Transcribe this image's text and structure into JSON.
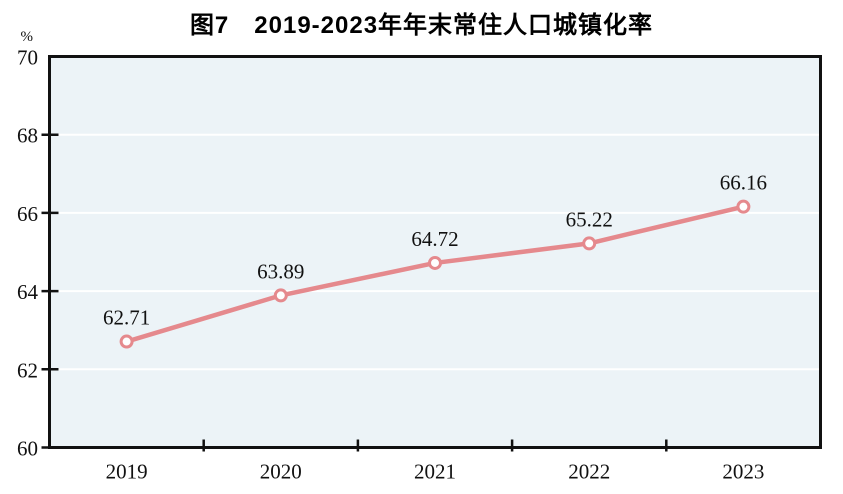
{
  "figure": {
    "title": "图7　2019-2023年年末常住人口城镇化率"
  },
  "colors": {
    "line": "#e5898d",
    "marker_fill": "#fefefe",
    "plot_bg": "#ecf3f7",
    "grid": "#ffffff",
    "axis": "#111111",
    "text": "#111111",
    "title_text": "#000000"
  },
  "chart_data": {
    "type": "line",
    "title": "图7　2019-2023年年末常住人口城镇化率",
    "categories": [
      "2019",
      "2020",
      "2021",
      "2022",
      "2023"
    ],
    "series": [
      {
        "name": "年末常住人口城镇化率",
        "values": [
          62.71,
          63.89,
          64.72,
          65.22,
          66.16
        ]
      }
    ],
    "point_labels": [
      "62.71",
      "63.89",
      "64.72",
      "65.22",
      "66.16"
    ],
    "xlabel": "",
    "ylabel": "%",
    "ylim": [
      60,
      70
    ],
    "yticks": [
      60,
      62,
      64,
      66,
      68,
      70
    ],
    "grid": true,
    "legend_position": "none",
    "marker": "open-circle"
  }
}
